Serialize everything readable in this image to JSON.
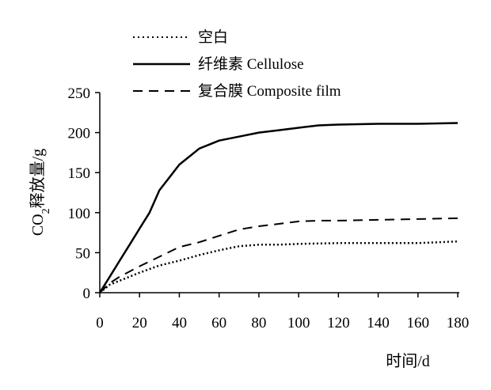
{
  "chart_data": {
    "type": "line",
    "xlabel": "时间/d",
    "ylabel_main": "CO",
    "ylabel_sub": "2",
    "ylabel_rest": "释放量/g",
    "xlim": [
      0,
      180
    ],
    "ylim": [
      0,
      250
    ],
    "x_ticks": [
      "0",
      "20",
      "40",
      "60",
      "80",
      "100",
      "120",
      "140",
      "160",
      "180"
    ],
    "y_ticks": [
      "0",
      "50",
      "100",
      "150",
      "200",
      "250"
    ],
    "grid": false,
    "legend_position": "top",
    "series": [
      {
        "name": "空白",
        "style": "dotted",
        "x": [
          0,
          5,
          10,
          20,
          30,
          40,
          50,
          60,
          70,
          80,
          90,
          100,
          120,
          140,
          160,
          180
        ],
        "y": [
          0,
          10,
          15,
          25,
          34,
          40,
          47,
          53,
          58,
          60,
          60,
          61,
          62,
          62,
          62,
          64
        ]
      },
      {
        "name": "纤维素 Cellulose",
        "style": "solid",
        "x": [
          0,
          5,
          10,
          15,
          20,
          25,
          30,
          35,
          40,
          45,
          50,
          55,
          60,
          70,
          80,
          90,
          100,
          110,
          120,
          140,
          160,
          180
        ],
        "y": [
          0,
          20,
          40,
          60,
          80,
          100,
          128,
          144,
          160,
          170,
          180,
          185,
          190,
          195,
          200,
          203,
          206,
          209,
          210,
          211,
          211,
          212
        ]
      },
      {
        "name": "复合膜 Composite film",
        "style": "dashed",
        "x": [
          0,
          5,
          10,
          20,
          30,
          40,
          50,
          60,
          70,
          80,
          90,
          100,
          110,
          120,
          140,
          160,
          180
        ],
        "y": [
          0,
          12,
          20,
          33,
          45,
          57,
          63,
          71,
          79,
          83,
          86,
          89,
          90,
          90,
          91,
          92,
          93
        ]
      }
    ]
  }
}
